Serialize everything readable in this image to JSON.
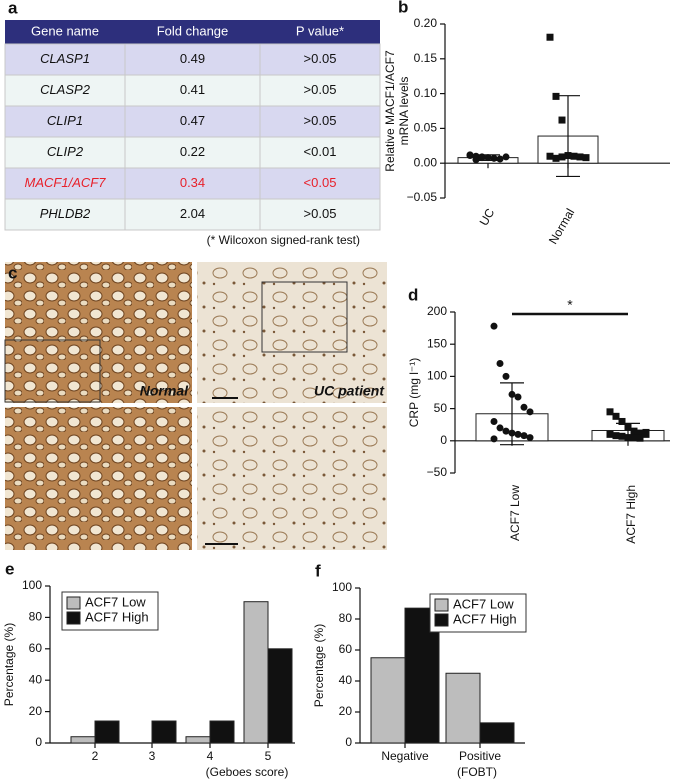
{
  "table": {
    "label": "a",
    "header": [
      "Gene name",
      "Fold change",
      "P value*"
    ],
    "rows": [
      [
        "CLASP1",
        "0.49",
        ">0.05"
      ],
      [
        "CLASP2",
        "0.41",
        ">0.05"
      ],
      [
        "CLIP1",
        "0.47",
        ">0.05"
      ],
      [
        "CLIP2",
        "0.22",
        "<0.01"
      ],
      [
        "MACF1/ACF7",
        "0.34",
        "<0.05"
      ],
      [
        "PHLDB2",
        "2.04",
        ">0.05"
      ]
    ],
    "highlight_row": 4,
    "highlight_color": "#e8202a",
    "footnote": "(* Wilcoxon signed-rank test)"
  },
  "images": {
    "label": "c",
    "captions": [
      "Normal",
      "UC patient"
    ]
  },
  "chart_data": [
    {
      "label": "b",
      "type": "bar",
      "ylabel": [
        "Relative MACF1/ACF7",
        "mRNA levels"
      ],
      "categories": [
        "UC",
        "Normal"
      ],
      "values": [
        0.008,
        0.039
      ],
      "errors": [
        0.004,
        0.058
      ],
      "points": [
        [
          0.012,
          0.01,
          0.009,
          0.008,
          0.007,
          0.006,
          0.009,
          0.011,
          0.005,
          0.008
        ],
        [
          0.181,
          0.096,
          0.062,
          0.011,
          0.01,
          0.009,
          0.008,
          0.01,
          0.007,
          0.009
        ]
      ],
      "markers": [
        "circle",
        "square"
      ],
      "color": "#ffffff",
      "xlabel_rotation": -60,
      "ylim": [
        -0.05,
        0.2
      ],
      "yticks": [
        {
          "value": -0.05,
          "label": "−0.05"
        },
        {
          "value": 0,
          "label": "0.00"
        },
        0.05,
        {
          "value": 0.1,
          "label": "0.10"
        },
        0.15,
        {
          "value": 0.2,
          "label": "0.20"
        }
      ]
    },
    {
      "label": "d",
      "type": "bar",
      "ylabel": "CRP (mg l⁻¹)",
      "categories": [
        "ACF7 Low",
        "ACF7 High"
      ],
      "values": [
        42,
        16
      ],
      "errors": [
        48,
        11
      ],
      "points": [
        [
          178,
          120,
          100,
          72,
          68,
          52,
          45,
          30,
          20,
          15,
          12,
          10,
          8,
          5,
          3
        ],
        [
          45,
          38,
          30,
          22,
          15,
          12,
          13,
          10,
          8,
          7,
          5,
          5,
          4,
          10
        ]
      ],
      "markers": [
        "circle",
        "square"
      ],
      "color": "#ffffff",
      "xlabel_rotation": -90,
      "annotation": "*",
      "ylim": [
        -50,
        200
      ],
      "yticks": [
        {
          "value": -50,
          "label": "−50"
        },
        0,
        50,
        100,
        150,
        200
      ]
    },
    {
      "label": "e",
      "type": "bar",
      "ylabel": "Percentage (%)",
      "xlabel": "(Geboes score)",
      "categories": [
        "2",
        "3",
        "4",
        "5"
      ],
      "series": [
        {
          "name": "ACF7 Low",
          "color": "#bdbdbd",
          "values": [
            4,
            0,
            4,
            90
          ]
        },
        {
          "name": "ACF7 High",
          "color": "#111111",
          "values": [
            14,
            14,
            14,
            60
          ]
        }
      ],
      "legend": "upper left",
      "ylim": [
        0,
        100
      ],
      "yticks": [
        0,
        20,
        40,
        60,
        80,
        100
      ]
    },
    {
      "label": "f",
      "type": "bar",
      "ylabel": "Percentage (%)",
      "xlabel": "(FOBT)",
      "categories": [
        "Negative",
        "Positive"
      ],
      "series": [
        {
          "name": "ACF7 Low",
          "color": "#bdbdbd",
          "values": [
            55,
            45
          ]
        },
        {
          "name": "ACF7 High",
          "color": "#111111",
          "values": [
            87,
            13
          ]
        }
      ],
      "legend": "upper right",
      "ylim": [
        0,
        100
      ],
      "yticks": [
        0,
        20,
        40,
        60,
        80,
        100
      ]
    }
  ]
}
